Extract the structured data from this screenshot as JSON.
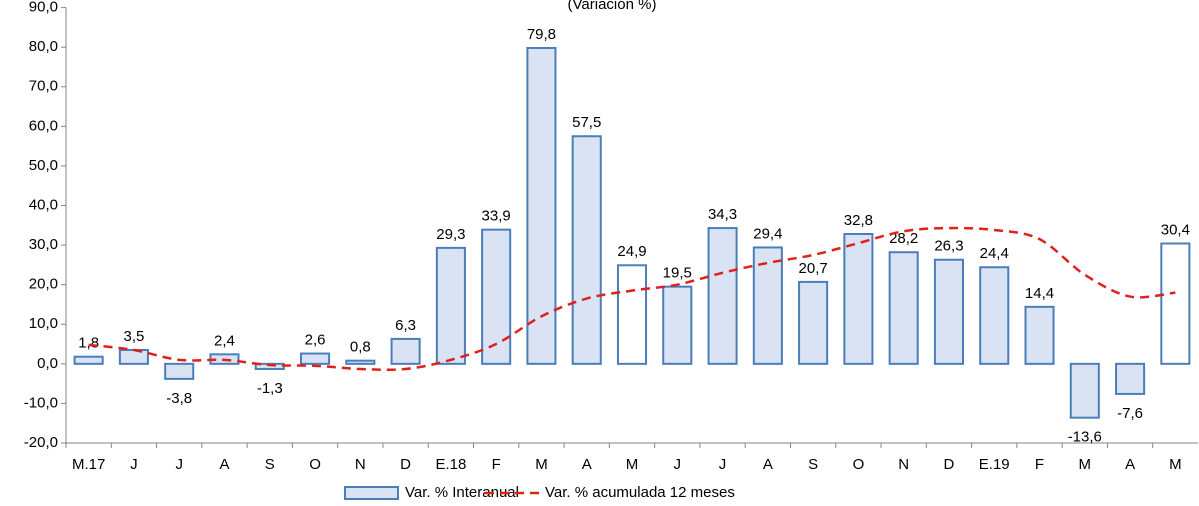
{
  "chart_data": {
    "type": "bar",
    "title": "(Variación %)",
    "categories": [
      "M.17",
      "J",
      "J",
      "A",
      "S",
      "O",
      "N",
      "D",
      "E.18",
      "F",
      "M",
      "A",
      "M",
      "J",
      "J",
      "A",
      "S",
      "O",
      "N",
      "D",
      "E.19",
      "F",
      "M",
      "A",
      "M"
    ],
    "series": [
      {
        "name": "Var. % Interanual",
        "type": "bar",
        "color": "#dae3f3",
        "edge_color": "#4a7ebb",
        "point_colors": [
          "#dae3f3",
          "#dae3f3",
          "#dae3f3",
          "#dae3f3",
          "#dae3f3",
          "#dae3f3",
          "#dae3f3",
          "#dae3f3",
          "#dae3f3",
          "#dae3f3",
          "#dae3f3",
          "#dae3f3",
          "#ffffff",
          "#dae3f3",
          "#dae3f3",
          "#dae3f3",
          "#dae3f3",
          "#dae3f3",
          "#dae3f3",
          "#dae3f3",
          "#dae3f3",
          "#dae3f3",
          "#dae3f3",
          "#dae3f3",
          "#ffffff"
        ],
        "values": [
          1.8,
          3.5,
          -3.8,
          2.4,
          -1.3,
          2.6,
          0.8,
          6.3,
          29.3,
          33.9,
          79.8,
          57.5,
          24.9,
          19.5,
          34.3,
          29.4,
          20.7,
          32.8,
          28.2,
          26.3,
          24.4,
          14.4,
          -13.6,
          -7.6,
          30.4
        ],
        "value_labels": [
          "1,8",
          "3,5",
          "-3,8",
          "2,4",
          "-1,3",
          "2,6",
          "0,8",
          "6,3",
          "29,3",
          "33,9",
          "79,8",
          "57,5",
          "24,9",
          "19,5",
          "34,3",
          "29,4",
          "20,7",
          "32,8",
          "28,2",
          "26,3",
          "24,4",
          "14,4",
          "-13,6",
          "-7,6",
          "30,4"
        ]
      },
      {
        "name": "Var. % acumulada 12 meses",
        "type": "line",
        "color": "#e0201b",
        "dashed": true,
        "values": [
          4.8,
          3.5,
          1.0,
          1.0,
          -0.3,
          -0.5,
          -1.3,
          -1.3,
          1.0,
          5.0,
          12.0,
          16.5,
          18.5,
          20.0,
          23.0,
          25.5,
          27.5,
          30.5,
          33.5,
          34.3,
          33.8,
          31.5,
          22.5,
          17.0,
          18.0
        ]
      }
    ],
    "ylim": [
      -20,
      90
    ],
    "yticks": [
      {
        "value": -20,
        "label": "-20,0"
      },
      {
        "value": -10,
        "label": "-10,0"
      },
      {
        "value": 0,
        "label": "0,0"
      },
      {
        "value": 10,
        "label": "10,0"
      },
      {
        "value": 20,
        "label": "20,0"
      },
      {
        "value": 30,
        "label": "30,0"
      },
      {
        "value": 40,
        "label": "40,0"
      },
      {
        "value": 50,
        "label": "50,0"
      },
      {
        "value": 60,
        "label": "60,0"
      },
      {
        "value": 70,
        "label": "70,0"
      },
      {
        "value": 80,
        "label": "80,0"
      },
      {
        "value": 90,
        "label": "90,0"
      }
    ],
    "grid": false,
    "legend": "bottom"
  }
}
